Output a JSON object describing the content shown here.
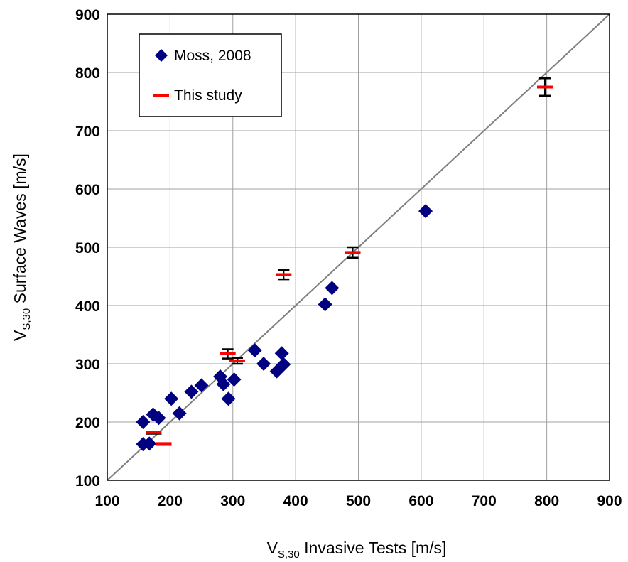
{
  "chart_data": {
    "type": "scatter",
    "xlabel": {
      "main": "V",
      "sub": "S,30",
      "rest": " Invasive Tests [m/s]"
    },
    "ylabel": {
      "main": "V",
      "sub": "S,30",
      "rest": " Surface Waves [m/s]"
    },
    "xlim": [
      100,
      900
    ],
    "ylim": [
      100,
      900
    ],
    "xticks": [
      "100",
      "200",
      "300",
      "400",
      "500",
      "600",
      "700",
      "800",
      "900"
    ],
    "yticks": [
      "100",
      "200",
      "300",
      "400",
      "500",
      "600",
      "700",
      "800",
      "900"
    ],
    "grid": true,
    "legend_position": "top-left",
    "reference_line": {
      "type": "1:1",
      "color": "#7f7f7f"
    },
    "series": [
      {
        "name": "Moss, 2008",
        "marker": "diamond",
        "color": "#000080",
        "points": [
          {
            "x": 157,
            "y": 200
          },
          {
            "x": 157,
            "y": 162
          },
          {
            "x": 167,
            "y": 163
          },
          {
            "x": 173,
            "y": 213
          },
          {
            "x": 182,
            "y": 207
          },
          {
            "x": 202,
            "y": 240
          },
          {
            "x": 215,
            "y": 215
          },
          {
            "x": 234,
            "y": 252
          },
          {
            "x": 250,
            "y": 263
          },
          {
            "x": 280,
            "y": 278
          },
          {
            "x": 285,
            "y": 265
          },
          {
            "x": 293,
            "y": 240
          },
          {
            "x": 302,
            "y": 273
          },
          {
            "x": 335,
            "y": 323
          },
          {
            "x": 349,
            "y": 300
          },
          {
            "x": 370,
            "y": 287
          },
          {
            "x": 378,
            "y": 318
          },
          {
            "x": 381,
            "y": 299
          },
          {
            "x": 447,
            "y": 402
          },
          {
            "x": 458,
            "y": 430
          },
          {
            "x": 607,
            "y": 562
          }
        ]
      },
      {
        "name": "This study",
        "marker": "dash",
        "color": "#ff0000",
        "error_color": "#000000",
        "points": [
          {
            "x": 174,
            "y": 182,
            "err": 0
          },
          {
            "x": 190,
            "y": 163,
            "err": 0
          },
          {
            "x": 292,
            "y": 317,
            "err": 8
          },
          {
            "x": 307,
            "y": 305,
            "err": 5
          },
          {
            "x": 381,
            "y": 453,
            "err": 8
          },
          {
            "x": 491,
            "y": 491,
            "err": 9
          },
          {
            "x": 797,
            "y": 775,
            "err": 15
          }
        ]
      }
    ]
  }
}
